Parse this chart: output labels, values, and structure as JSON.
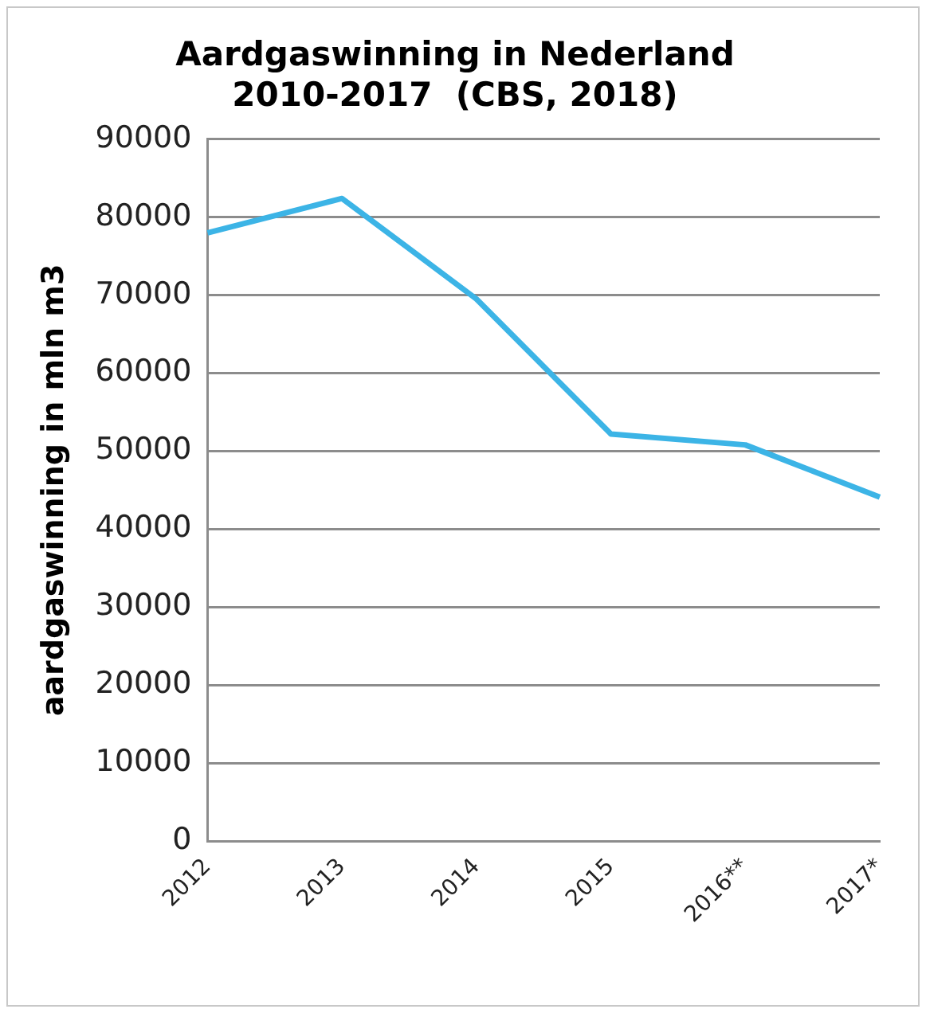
{
  "chart_data": {
    "type": "line",
    "title": "Aardgaswinning in Nederland\n2010-2017  (CBS, 2018)",
    "ylabel": "aardgaswinning in mln m3",
    "categories": [
      "2012",
      "2013",
      "2014",
      "2015",
      "2016**",
      "2017*"
    ],
    "series": [
      {
        "color": "#3cb4e6",
        "values": [
          78000,
          82400,
          69500,
          52200,
          50800,
          44100
        ]
      }
    ],
    "ylim": [
      0,
      90000
    ],
    "yticks": [
      0,
      10000,
      20000,
      30000,
      40000,
      50000,
      60000,
      70000,
      80000,
      90000
    ],
    "grid": "y",
    "legend": false,
    "marker": "none",
    "line_style": "solid"
  }
}
